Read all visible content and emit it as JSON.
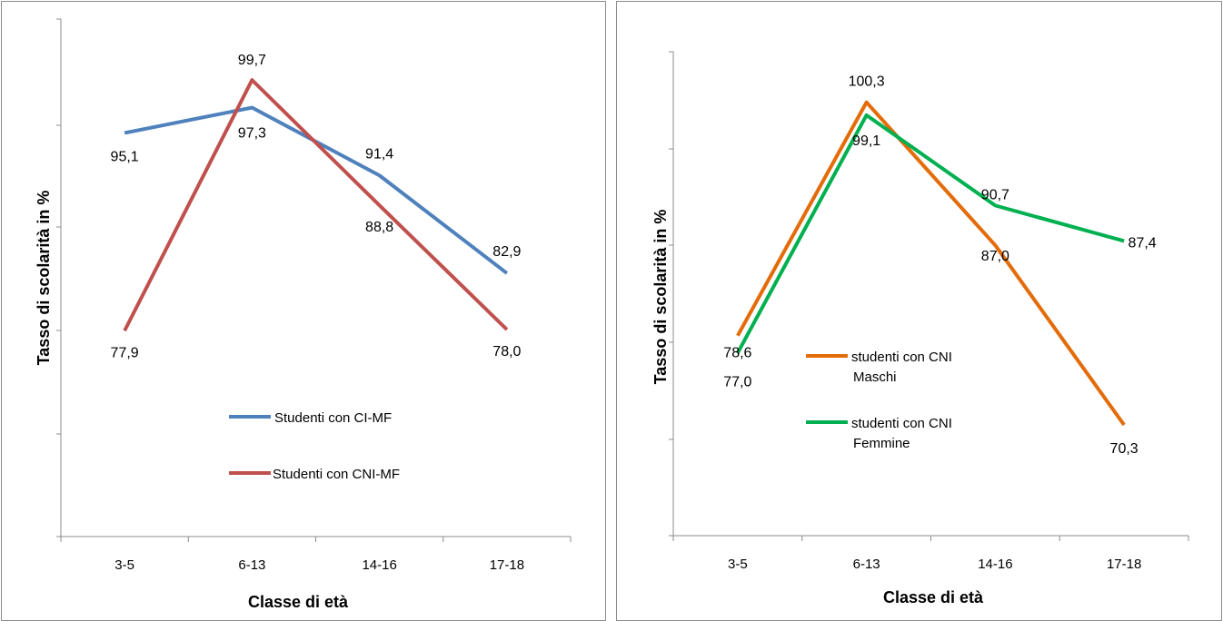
{
  "chart_data": [
    {
      "type": "line",
      "title": "",
      "xlabel": "Classe di età",
      "ylabel": "Tasso di scolarità in %",
      "categories": [
        "3-5",
        "6-13",
        "14-16",
        "17-18"
      ],
      "ylim": [
        60,
        105
      ],
      "grid": false,
      "legend": "center",
      "series": [
        {
          "name": "Studenti con CI-MF",
          "color": "#4f81bd",
          "values": [
            95.1,
            97.3,
            91.4,
            82.9
          ],
          "labels": [
            "95,1",
            "97,3",
            "91,4",
            "82,9"
          ]
        },
        {
          "name": "Studenti con CNI-MF",
          "color": "#c0504d",
          "values": [
            77.9,
            99.7,
            88.8,
            78.0
          ],
          "labels": [
            "77,9",
            "99,7",
            "88,8",
            "78,0"
          ]
        }
      ]
    },
    {
      "type": "line",
      "title": "",
      "xlabel": "Classe di età",
      "ylabel": "Tasso di scolarità in %",
      "categories": [
        "3-5",
        "6-13",
        "14-16",
        "17-18"
      ],
      "ylim": [
        60,
        105
      ],
      "grid": false,
      "legend": "center-left",
      "series": [
        {
          "name": "studenti con CNI Maschi",
          "name_lines": [
            "studenti con CNI",
            "Maschi"
          ],
          "color": "#e36c09",
          "values": [
            78.6,
            100.3,
            87.0,
            70.3
          ],
          "labels": [
            "78,6",
            "100,3",
            "87,0",
            "70,3"
          ]
        },
        {
          "name": "studenti con CNI Femmine",
          "name_lines": [
            "studenti con CNI",
            "Femmine"
          ],
          "color": "#00b050",
          "values": [
            77.0,
            99.1,
            90.7,
            87.4
          ],
          "labels": [
            "77,0",
            "99,1",
            "90,7",
            "87,4"
          ]
        }
      ]
    }
  ]
}
